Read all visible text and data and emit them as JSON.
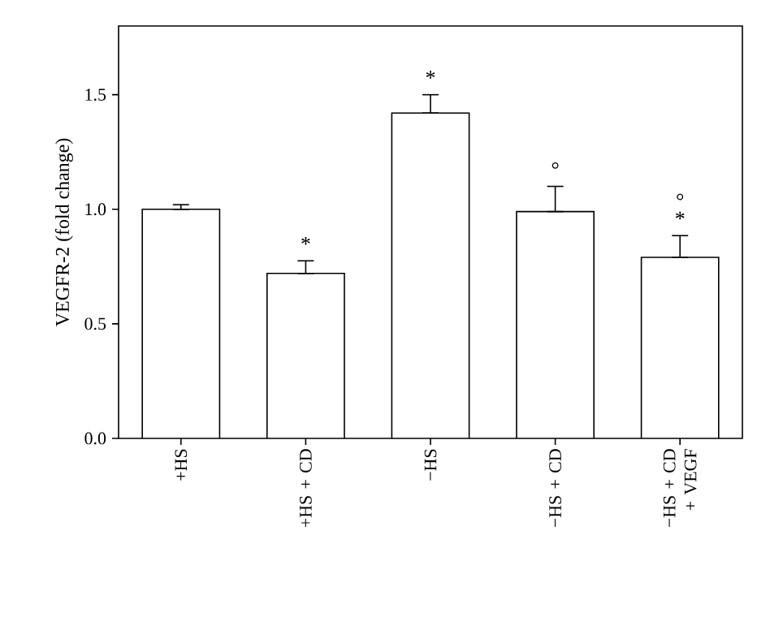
{
  "chart_data": {
    "type": "bar",
    "ylabel": "VEGFR-2 (fold change)",
    "categories": [
      "+HS",
      "+HS + CD",
      "−HS",
      "−HS + CD",
      "−HS + CD + VEGF"
    ],
    "values": [
      1.0,
      0.72,
      1.42,
      0.99,
      0.79
    ],
    "errors": [
      [
        1.0,
        1.02
      ],
      [
        0.72,
        0.775
      ],
      [
        1.42,
        1.5
      ],
      [
        0.99,
        1.1
      ],
      [
        0.79,
        0.885
      ]
    ],
    "color": "#ffffff",
    "ylim": [
      0,
      1.8
    ],
    "yticks": [
      {
        "value": 0,
        "label": "0.0"
      },
      0.5,
      {
        "value": 1,
        "label": "1.0"
      },
      1.5
    ],
    "annotations": [
      {
        "text": "*",
        "x": "+HS + CD",
        "y": 0.72
      },
      {
        "text": "*",
        "x": "−HS",
        "y": 1.42
      },
      {
        "text": "°",
        "x": "−HS + CD",
        "y": 0.99
      },
      {
        "text": "*",
        "x": "−HS + CD + VEGF",
        "y": 0.79
      },
      {
        "text": "°",
        "x": "−HS + CD + VEGF",
        "y": 0.79
      }
    ]
  }
}
